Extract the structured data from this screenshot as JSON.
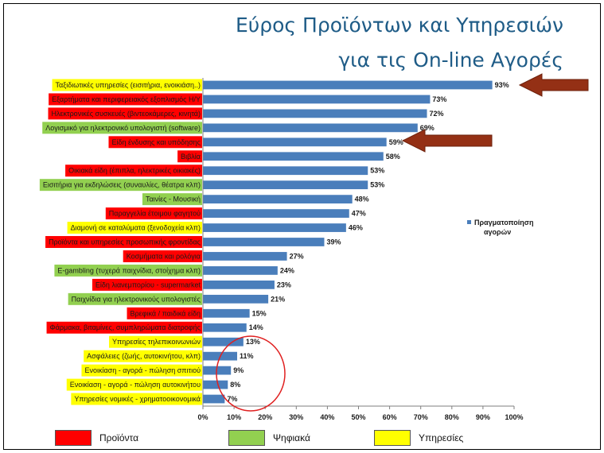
{
  "slide": {
    "title_line1": "Εύρος Προϊόντων και Υπηρεσιών",
    "title_line2": "για τις On-line Αγορές"
  },
  "colors": {
    "bar": "#4a7ebb",
    "products": "#ff0000",
    "digital": "#92d050",
    "services": "#ffff00",
    "arrow": "#943015",
    "circle": "#e02020",
    "title": "#1f5c87"
  },
  "key": {
    "products": "Προϊόντα",
    "digital": "Ψηφιακά",
    "services": "Υπηρεσίες"
  },
  "chart_data": {
    "type": "bar",
    "orientation": "horizontal",
    "xlim": [
      0,
      100
    ],
    "x_ticks": [
      "0%",
      "10%",
      "20%",
      "30%",
      "40%",
      "50%",
      "60%",
      "70%",
      "80%",
      "90%",
      "100%"
    ],
    "series": [
      {
        "name": "Πραγματοποίηση αγορών",
        "values": [
          93,
          73,
          72,
          69,
          59,
          58,
          53,
          53,
          48,
          47,
          46,
          39,
          27,
          24,
          23,
          21,
          15,
          14,
          13,
          11,
          9,
          8,
          7
        ]
      }
    ],
    "value_labels": [
      "93%",
      "73%",
      "72%",
      "69%",
      "59%",
      "58%",
      "53%",
      "53%",
      "48%",
      "47%",
      "46%",
      "39%",
      "27%",
      "24%",
      "23%",
      "21%",
      "15%",
      "14%",
      "13%",
      "11%",
      "9%",
      "8%",
      "7%"
    ],
    "categories": [
      "Ταξιδιωτικές υπηρεσίες (εισιτήρια, ενοικιάση..)",
      "Εξαρτήματα και περιφερειακός εξοπλισμός Η/Υ",
      "Ηλεκτρονικές συσκευές (βιντεοκάμερες, κινητά)",
      "Λογισμικό για ηλεκτρονικό υπολογιστή (software)",
      "Είδη ένδυσης και υπόδησης",
      "Βιβλία",
      "Οικιακά είδη (έπιπλα, ηλεκτρικές οικιακές)",
      "Εισιτήρια για εκδηλώσεις (συναυλίες, θέατρα κλπ)",
      "Ταινίες - Μουσική",
      "Παραγγελία έτοιμου φαγητού",
      "Διαμονή σε καταλύματα (ξενοδοχεία κλπ)",
      "Προϊόντα και υπηρεσίες προσωπικής φροντίδας",
      "Κοσμήματα και ρολόγια",
      "E-gambling (τυχερά παιχνίδια, στοίχημα κλπ)",
      "Είδη λιανεμπορίου - supermarket",
      "Παιχνίδια για ηλεκτρονικούς υπολογιστές",
      "Βρεφικά / παιδικά είδη",
      "Φάρμακα, βιταμίνες, συμπληρώματα διατροφής",
      "Υπηρεσίες τηλεπικοινωνιών",
      "Ασφάλειες (ζωής, αυτοκινήτου, κλπ)",
      "Ενοικίαση - αγορά - πώληση σπιτιού",
      "Ενοικίαση - αγορά - πώληση αυτοκινήτου",
      "Υπηρεσίες νομικές - χρηματοοικονομικά"
    ],
    "category_groups": [
      "services",
      "products",
      "products",
      "digital",
      "products",
      "products",
      "products",
      "digital",
      "digital",
      "products",
      "services",
      "products",
      "products",
      "digital",
      "products",
      "digital",
      "products",
      "products",
      "services",
      "services",
      "services",
      "services",
      "services"
    ],
    "legend": {
      "label_line1": "Πραγματοποίηση",
      "label_line2": "αγορών",
      "placement": "right"
    },
    "grid": false
  }
}
